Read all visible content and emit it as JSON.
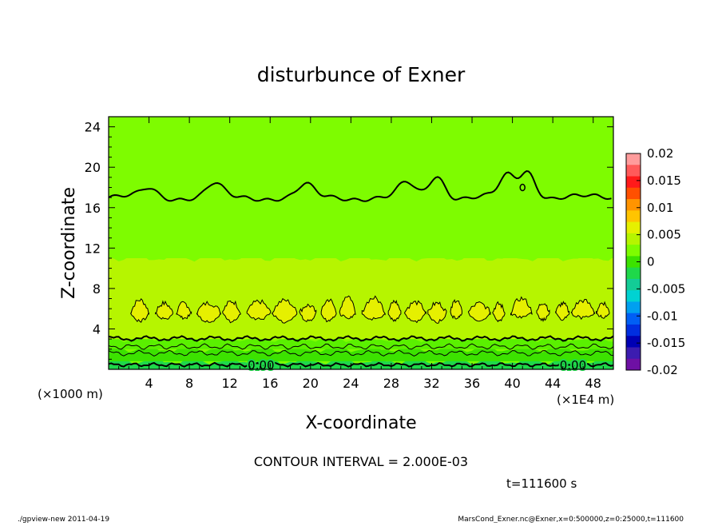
{
  "chart_data": {
    "type": "heatmap",
    "title": "disturbunce of Exner",
    "xlabel": "X-coordinate",
    "ylabel": "Z-coordinate",
    "x_unit": "(×1000 m)",
    "x_scale_note": "(×1E4 m)",
    "xlim": [
      0,
      50
    ],
    "ylim": [
      0,
      25
    ],
    "x_ticks": [
      "4",
      "8",
      "12",
      "16",
      "20",
      "24",
      "28",
      "32",
      "36",
      "40",
      "44",
      "48"
    ],
    "y_ticks": [
      "4",
      "8",
      "12",
      "16",
      "20",
      "24"
    ],
    "colorbar": {
      "ticks": [
        "0.02",
        "0.015",
        "0.01",
        "0.005",
        "0",
        "-0.005",
        "-0.01",
        "-0.015",
        "-0.02"
      ],
      "range": [
        -0.02,
        0.02
      ],
      "colors": [
        "#ff9c9c",
        "#ff5a5a",
        "#ff1a1a",
        "#ff5000",
        "#ff9400",
        "#ffc400",
        "#e6f000",
        "#b6f500",
        "#7efc00",
        "#3ce200",
        "#1fd84a",
        "#13cc96",
        "#00d2d2",
        "#00a0f0",
        "#005ff5",
        "#002ee0",
        "#0000b4",
        "#3c1cb0",
        "#6e10a4"
      ]
    },
    "layers": [
      {
        "z_range": [
          0,
          0.8
        ],
        "level": "-0.001",
        "color": "#1fd84a"
      },
      {
        "z_range": [
          0.8,
          2
        ],
        "level": "-0.0005",
        "color": "#3ce200"
      },
      {
        "z_range": [
          2,
          3
        ],
        "level": "0",
        "color": "#5af000"
      },
      {
        "z_range": [
          3,
          11
        ],
        "level": "0.002",
        "color": "#b6f500"
      },
      {
        "z_range": [
          11,
          25
        ],
        "level": "0.001",
        "color": "#7efc00"
      }
    ],
    "contour_labels": [
      {
        "text": "0.00",
        "x": 15.1,
        "z": 0.4
      },
      {
        "text": "0.00",
        "x": 46.0,
        "z": 0.4
      }
    ],
    "contour_interval": "CONTOUR INTERVAL = 2.000E-03",
    "time_label": "t=111600  s"
  },
  "footer": {
    "left": "./gpview-new  2011-04-19",
    "right": "MarsCond_Exner.nc@Exner,x=0:500000,z=0:25000,t=111600"
  }
}
